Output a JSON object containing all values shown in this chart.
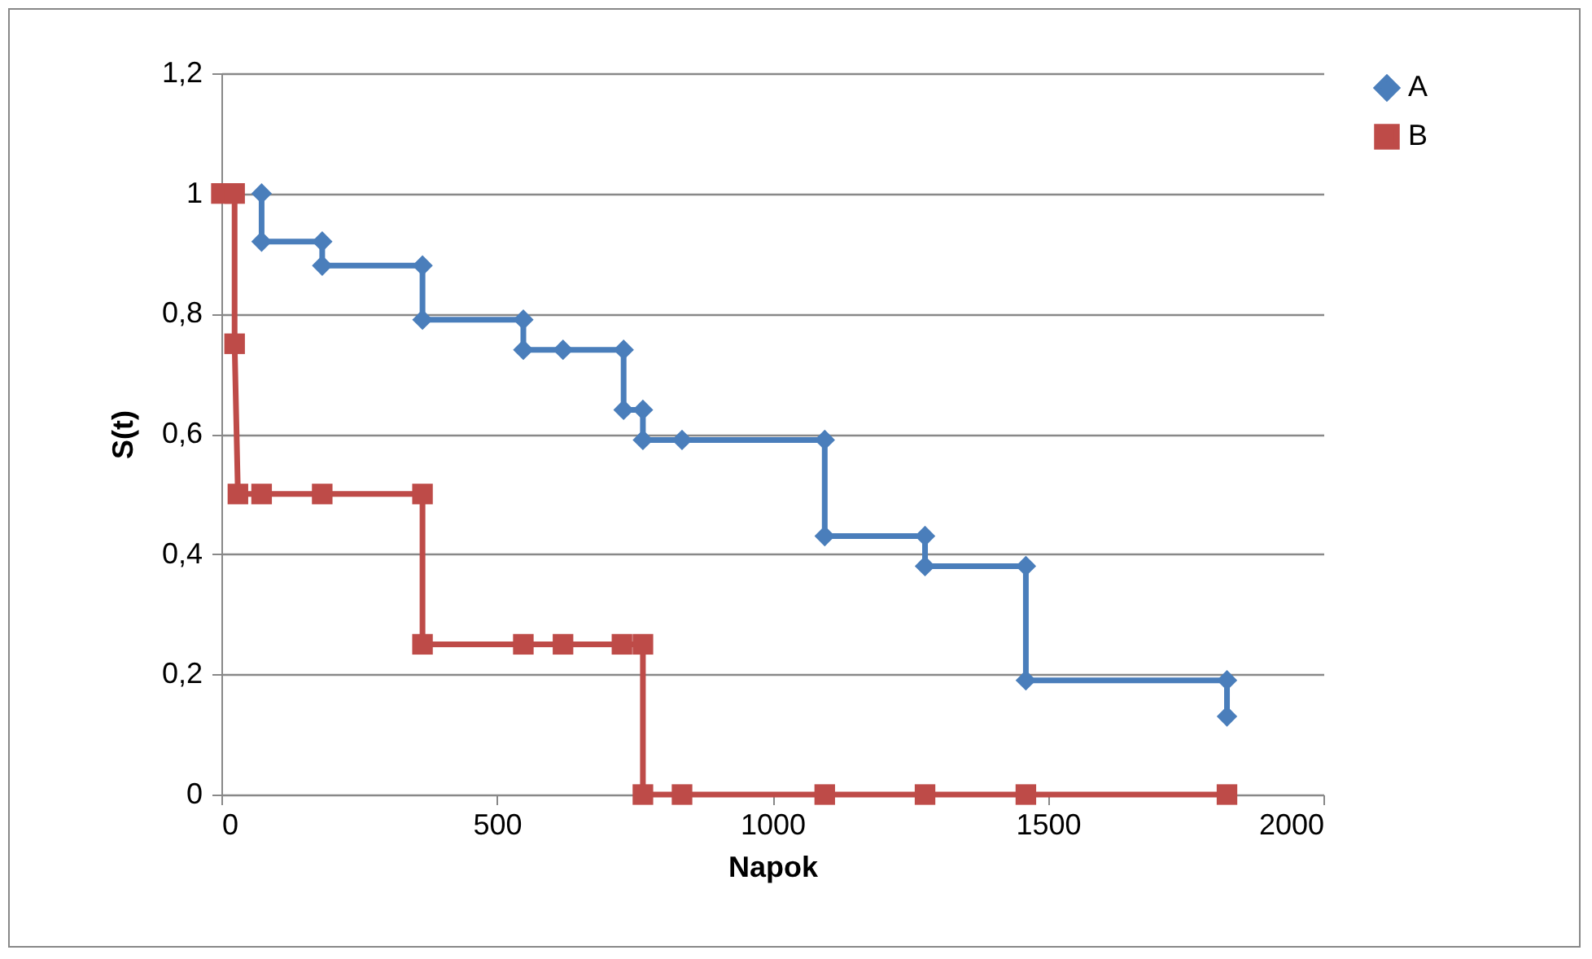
{
  "chart_data": {
    "type": "line",
    "xlabel": "Napok",
    "ylabel": "S(t)",
    "xlim": [
      0,
      2000
    ],
    "xticks": [
      0,
      500,
      1000,
      1500,
      2000
    ],
    "ylim": [
      0,
      1.2
    ],
    "yticks": [
      0,
      {
        "value": 0.2,
        "label": "0,2"
      },
      {
        "value": 0.4,
        "label": "0,4"
      },
      {
        "value": 0.6,
        "label": "0,6"
      },
      {
        "value": 0.8,
        "label": "0,8"
      },
      1,
      {
        "value": 1.2,
        "label": "1,2"
      }
    ],
    "grid": "y",
    "legend": "right",
    "series": [
      {
        "name": "A",
        "color": "#4a7ebb",
        "marker": "diamond",
        "x": [
          73,
          73,
          183,
          183,
          365,
          365,
          548,
          548,
          620,
          730,
          730,
          765,
          765,
          836,
          1095,
          1095,
          1277,
          1277,
          1460,
          1460,
          1825,
          1825
        ],
        "values": [
          1,
          0.92,
          0.92,
          0.88,
          0.88,
          0.79,
          0.79,
          0.74,
          0.74,
          0.74,
          0.64,
          0.64,
          0.59,
          0.59,
          0.59,
          0.43,
          0.43,
          0.38,
          0.38,
          0.19,
          0.19,
          0.13
        ]
      },
      {
        "name": "B",
        "color": "#be4b48",
        "marker": "square",
        "x": [
          0,
          24,
          24,
          30,
          73,
          183,
          365,
          365,
          548,
          620,
          727,
          765,
          765,
          836,
          1095,
          1277,
          1460,
          1825
        ],
        "values": [
          1,
          1,
          0.75,
          0.5,
          0.5,
          0.5,
          0.5,
          0.25,
          0.25,
          0.25,
          0.25,
          0.25,
          0,
          0,
          0,
          0,
          0,
          0
        ]
      }
    ]
  }
}
